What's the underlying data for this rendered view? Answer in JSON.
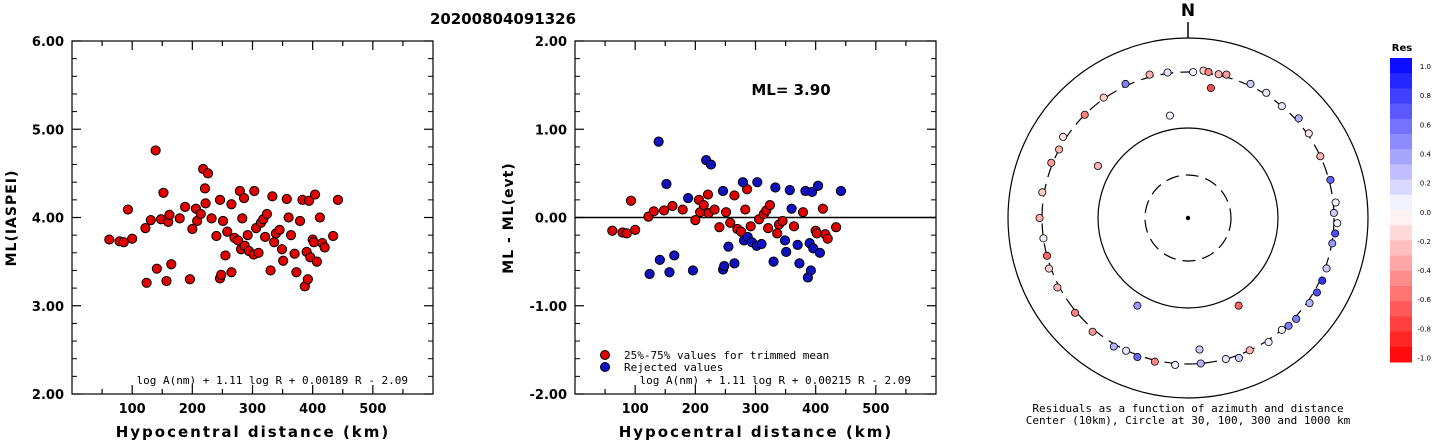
{
  "figure": {
    "title": "20200804091326",
    "north_label": "N",
    "caption_line1": "Residuals as a function of azimuth and distance",
    "caption_line2": "Center (10km), Circle at 30, 100, 300 and 1000 km",
    "colorbar_title": "Res",
    "colorbar_ticks": [
      "1.0",
      "0.8",
      "0.6",
      "0.4",
      "0.2",
      "0.0",
      "-0.2",
      "-0.4",
      "-0.6",
      "-0.8",
      "-1.0"
    ]
  },
  "chart_data": [
    {
      "type": "scatter",
      "xlabel": "Hypocentral distance (km)",
      "ylabel": "ML(IASPEI)",
      "xlim": [
        0,
        600
      ],
      "ylim": [
        2.0,
        6.0
      ],
      "xticks": [
        "100",
        "200",
        "300",
        "400",
        "500"
      ],
      "yticks": [
        "2.00",
        "3.00",
        "4.00",
        "5.00",
        "6.00"
      ],
      "formula": "log A(nm) + 1.11 log R + 0.00189 R - 2.09",
      "marker_color": "#e00000",
      "points": [
        [
          62,
          3.75
        ],
        [
          79,
          3.73
        ],
        [
          86,
          3.72
        ],
        [
          93,
          4.09
        ],
        [
          100,
          3.76
        ],
        [
          122,
          3.88
        ],
        [
          124,
          3.26
        ],
        [
          131,
          3.97
        ],
        [
          139,
          4.76
        ],
        [
          141,
          3.42
        ],
        [
          148,
          3.98
        ],
        [
          152,
          4.28
        ],
        [
          157,
          3.28
        ],
        [
          160,
          3.95
        ],
        [
          162,
          4.03
        ],
        [
          165,
          3.47
        ],
        [
          179,
          3.99
        ],
        [
          188,
          4.12
        ],
        [
          196,
          3.3
        ],
        [
          200,
          3.87
        ],
        [
          206,
          4.1
        ],
        [
          208,
          3.96
        ],
        [
          214,
          4.04
        ],
        [
          218,
          4.55
        ],
        [
          221,
          4.33
        ],
        [
          222,
          4.16
        ],
        [
          226,
          4.5
        ],
        [
          232,
          3.99
        ],
        [
          240,
          3.79
        ],
        [
          246,
          4.2
        ],
        [
          246,
          3.31
        ],
        [
          248,
          3.35
        ],
        [
          251,
          3.96
        ],
        [
          255,
          3.57
        ],
        [
          258,
          3.84
        ],
        [
          265,
          4.15
        ],
        [
          265,
          3.38
        ],
        [
          270,
          3.77
        ],
        [
          276,
          3.74
        ],
        [
          279,
          4.3
        ],
        [
          281,
          3.64
        ],
        [
          283,
          3.99
        ],
        [
          286,
          4.22
        ],
        [
          287,
          3.68
        ],
        [
          292,
          3.8
        ],
        [
          294,
          3.62
        ],
        [
          302,
          3.58
        ],
        [
          303,
          4.3
        ],
        [
          306,
          3.88
        ],
        [
          310,
          3.6
        ],
        [
          314,
          3.94
        ],
        [
          318,
          3.98
        ],
        [
          321,
          3.78
        ],
        [
          324,
          4.04
        ],
        [
          330,
          3.4
        ],
        [
          333,
          4.24
        ],
        [
          336,
          3.72
        ],
        [
          339,
          3.82
        ],
        [
          345,
          3.86
        ],
        [
          349,
          3.64
        ],
        [
          351,
          3.51
        ],
        [
          357,
          4.21
        ],
        [
          360,
          4.0
        ],
        [
          364,
          3.8
        ],
        [
          370,
          3.59
        ],
        [
          373,
          3.38
        ],
        [
          379,
          3.96
        ],
        [
          383,
          4.2
        ],
        [
          387,
          3.22
        ],
        [
          390,
          3.61
        ],
        [
          392,
          3.3
        ],
        [
          394,
          4.19
        ],
        [
          396,
          3.55
        ],
        [
          400,
          3.75
        ],
        [
          402,
          3.72
        ],
        [
          404,
          4.26
        ],
        [
          407,
          3.5
        ],
        [
          412,
          4.0
        ],
        [
          416,
          3.71
        ],
        [
          420,
          3.66
        ],
        [
          434,
          3.79
        ],
        [
          442,
          4.2
        ]
      ]
    },
    {
      "type": "scatter",
      "xlabel": "Hypocentral distance (km)",
      "ylabel": "ML - ML(evt)",
      "xlim": [
        0,
        600
      ],
      "ylim": [
        -2.0,
        2.0
      ],
      "xticks": [
        "100",
        "200",
        "300",
        "400",
        "500"
      ],
      "yticks": [
        "-2.00",
        "-1.00",
        "0.00",
        "1.00",
        "2.00"
      ],
      "annotation": "ML= 3.90",
      "reference_line_y": 0.0,
      "formula": "log A(nm) + 1.11 log R + 0.00215 R - 2.09",
      "legend": [
        {
          "label": "25%-75% values for trimmed mean",
          "color": "#e00000"
        },
        {
          "label": "Rejected values",
          "color": "#1010c0"
        }
      ],
      "series": [
        {
          "name": "25%-75% values for trimmed mean",
          "color": "#e00000",
          "points": [
            [
              62,
              -0.15
            ],
            [
              79,
              -0.17
            ],
            [
              86,
              -0.18
            ],
            [
              93,
              0.19
            ],
            [
              100,
              -0.14
            ],
            [
              122,
              0.01
            ],
            [
              131,
              0.07
            ],
            [
              148,
              0.08
            ],
            [
              162,
              0.13
            ],
            [
              179,
              0.09
            ],
            [
              200,
              -0.03
            ],
            [
              206,
              0.2
            ],
            [
              208,
              0.06
            ],
            [
              214,
              0.14
            ],
            [
              221,
              0.26
            ],
            [
              222,
              0.05
            ],
            [
              232,
              0.09
            ],
            [
              240,
              -0.11
            ],
            [
              251,
              0.06
            ],
            [
              258,
              -0.06
            ],
            [
              265,
              0.25
            ],
            [
              270,
              -0.13
            ],
            [
              276,
              -0.16
            ],
            [
              283,
              0.09
            ],
            [
              286,
              0.32
            ],
            [
              292,
              -0.1
            ],
            [
              306,
              -0.02
            ],
            [
              314,
              0.04
            ],
            [
              318,
              0.08
            ],
            [
              321,
              -0.12
            ],
            [
              324,
              0.14
            ],
            [
              336,
              -0.18
            ],
            [
              339,
              -0.08
            ],
            [
              345,
              -0.04
            ],
            [
              364,
              -0.1
            ],
            [
              379,
              0.06
            ],
            [
              400,
              -0.15
            ],
            [
              402,
              -0.18
            ],
            [
              412,
              0.1
            ],
            [
              416,
              -0.19
            ],
            [
              420,
              -0.24
            ],
            [
              434,
              -0.11
            ]
          ]
        },
        {
          "name": "Rejected values",
          "color": "#1010c0",
          "points": [
            [
              124,
              -0.64
            ],
            [
              139,
              0.86
            ],
            [
              141,
              -0.48
            ],
            [
              152,
              0.38
            ],
            [
              157,
              -0.62
            ],
            [
              165,
              -0.43
            ],
            [
              188,
              0.22
            ],
            [
              196,
              -0.6
            ],
            [
              218,
              0.65
            ],
            [
              226,
              0.6
            ],
            [
              246,
              0.3
            ],
            [
              246,
              -0.59
            ],
            [
              248,
              -0.55
            ],
            [
              255,
              -0.33
            ],
            [
              265,
              -0.52
            ],
            [
              279,
              0.4
            ],
            [
              281,
              -0.26
            ],
            [
              287,
              -0.22
            ],
            [
              294,
              -0.28
            ],
            [
              302,
              -0.32
            ],
            [
              303,
              0.4
            ],
            [
              310,
              -0.3
            ],
            [
              330,
              -0.5
            ],
            [
              333,
              0.34
            ],
            [
              349,
              -0.26
            ],
            [
              351,
              -0.39
            ],
            [
              357,
              0.31
            ],
            [
              360,
              0.1
            ],
            [
              370,
              -0.31
            ],
            [
              373,
              -0.52
            ],
            [
              383,
              0.3
            ],
            [
              387,
              -0.68
            ],
            [
              390,
              -0.29
            ],
            [
              392,
              -0.6
            ],
            [
              394,
              0.29
            ],
            [
              396,
              -0.35
            ],
            [
              404,
              0.36
            ],
            [
              407,
              -0.4
            ],
            [
              442,
              0.3
            ]
          ]
        }
      ]
    },
    {
      "type": "scatter",
      "subtype": "polar residual map",
      "rings_km": [
        30,
        100,
        300,
        1000
      ],
      "colorbar_range": [
        -1.0,
        1.0
      ],
      "points": [
        {
          "az": 6,
          "d": 345,
          "res": -0.2
        },
        {
          "az": 25,
          "d": 340,
          "res": 0.2
        },
        {
          "az": 32,
          "d": 335,
          "res": 0.1
        },
        {
          "az": 40,
          "d": 300,
          "res": 0.1
        },
        {
          "az": 55,
          "d": 330,
          "res": -0.1
        },
        {
          "az": 65,
          "d": 300,
          "res": -0.3
        },
        {
          "az": 75,
          "d": 330,
          "res": 0.6
        },
        {
          "az": 84,
          "d": 350,
          "res": 0.05
        },
        {
          "az": 88,
          "d": 300,
          "res": 0.2
        },
        {
          "az": 92,
          "d": 370,
          "res": 0.05
        },
        {
          "az": 96,
          "d": 340,
          "res": 0.7
        },
        {
          "az": 110,
          "d": 330,
          "res": 0.2
        },
        {
          "az": 115,
          "d": 345,
          "res": 0.8
        },
        {
          "az": 120,
          "d": 360,
          "res": 0.7
        },
        {
          "az": 125,
          "d": 350,
          "res": 0.3
        },
        {
          "az": 133,
          "d": 340,
          "res": 0.5
        },
        {
          "az": 140,
          "d": 300,
          "res": -0.05
        },
        {
          "az": 147,
          "d": 340,
          "res": 0.05
        },
        {
          "az": 155,
          "d": 300,
          "res": -0.3
        },
        {
          "az": 165,
          "d": 300,
          "res": 0.1
        },
        {
          "az": 175,
          "d": 300,
          "res": 0.3
        },
        {
          "az": 185,
          "d": 330,
          "res": 0.05
        },
        {
          "az": 193,
          "d": 330,
          "res": -0.5
        },
        {
          "az": 200,
          "d": 340,
          "res": 0.6
        },
        {
          "az": 210,
          "d": 350,
          "res": 0.3
        },
        {
          "az": 220,
          "d": 350,
          "res": -0.4
        },
        {
          "az": 230,
          "d": 330,
          "res": -0.5
        },
        {
          "az": 242,
          "d": 340,
          "res": -0.3
        },
        {
          "az": 250,
          "d": 340,
          "res": -0.2
        },
        {
          "az": 262,
          "d": 300,
          "res": 0.05
        },
        {
          "az": 270,
          "d": 350,
          "res": -0.3
        },
        {
          "az": 280,
          "d": 340,
          "res": -0.2
        },
        {
          "az": 292,
          "d": 330,
          "res": -0.4
        },
        {
          "az": 303,
          "d": 360,
          "res": -0.1
        },
        {
          "az": 315,
          "d": 300,
          "res": -0.5
        },
        {
          "az": 325,
          "d": 320,
          "res": -0.2
        },
        {
          "az": 335,
          "d": 340,
          "res": 0.5
        },
        {
          "az": 345,
          "d": 350,
          "res": -0.3
        },
        {
          "az": 352,
          "d": 320,
          "res": 0.1
        },
        {
          "az": 2,
          "d": 300,
          "res": 0.05
        },
        {
          "az": 15,
          "d": 350,
          "res": -0.4
        },
        {
          "az": 48,
          "d": 360,
          "res": 0.3
        },
        {
          "az": 100,
          "d": 310,
          "res": 0.4
        },
        {
          "az": 137,
          "d": 330,
          "res": 0.5
        },
        {
          "az": 160,
          "d": 360,
          "res": 0.2
        },
        {
          "az": 205,
          "d": 310,
          "res": 0.1
        },
        {
          "az": 255,
          "d": 300,
          "res": -0.6
        },
        {
          "az": 298,
          "d": 300,
          "res": -0.3
        },
        {
          "az": 300,
          "d": 150,
          "res": -0.3
        },
        {
          "az": 150,
          "d": 140,
          "res": -0.6
        },
        {
          "az": 210,
          "d": 140,
          "res": 0.4
        },
        {
          "az": 350,
          "d": 150,
          "res": 0.05
        },
        {
          "az": 10,
          "d": 250,
          "res": -0.7
        },
        {
          "az": 175,
          "d": 250,
          "res": 0.2
        },
        {
          "az": 8,
          "d": 330,
          "res": -0.5
        },
        {
          "az": 12,
          "d": 320,
          "res": -0.3
        }
      ]
    }
  ]
}
